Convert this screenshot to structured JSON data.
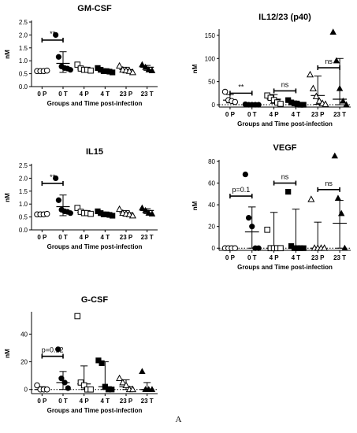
{
  "figure_label": "A",
  "groups": [
    "0 P",
    "0 T",
    "4 P",
    "4 T",
    "23 P",
    "23 T"
  ],
  "chart_data": [
    {
      "type": "scatter",
      "title": "GM-CSF",
      "ylabel": "nM",
      "xlabel": "Groups and Time post-infection",
      "ylim": [
        0,
        2.5
      ],
      "yticks": [
        0.0,
        0.5,
        1.0,
        1.5,
        2.0,
        2.5
      ],
      "tick_decimals": 1,
      "categories": [
        "0 P",
        "0 T",
        "4 P",
        "4 T",
        "23 P",
        "23 T"
      ],
      "series": [
        {
          "category": "0 P",
          "marker": "circle-open",
          "values": [
            0.6,
            0.6,
            0.6,
            0.62
          ],
          "mean": 0.61,
          "upper": 0.63,
          "lower": 0.59
        },
        {
          "category": "0 T",
          "marker": "circle",
          "values": [
            2.0,
            1.15,
            0.78,
            0.72,
            0.7,
            0.65
          ],
          "mean": 0.9,
          "upper": 1.35,
          "lower": 0.55
        },
        {
          "category": "4 P",
          "marker": "square-open",
          "values": [
            0.85,
            0.7,
            0.65,
            0.65,
            0.62
          ],
          "mean": 0.68,
          "upper": 0.75,
          "lower": 0.6
        },
        {
          "category": "4 T",
          "marker": "square",
          "values": [
            0.72,
            0.65,
            0.6,
            0.6,
            0.58,
            0.55
          ],
          "mean": 0.62,
          "upper": 0.68,
          "lower": 0.56
        },
        {
          "category": "23 P",
          "marker": "triangle-open",
          "values": [
            0.8,
            0.65,
            0.62,
            0.6,
            0.55
          ],
          "mean": 0.66,
          "upper": 0.75,
          "lower": 0.55
        },
        {
          "category": "23 T",
          "marker": "triangle",
          "values": [
            0.85,
            0.75,
            0.65,
            0.62
          ],
          "mean": 0.75,
          "upper": 0.82,
          "lower": 0.63
        }
      ],
      "annotations": [
        {
          "from": "0 P",
          "to": "0 T",
          "y": 1.8,
          "label": "**"
        }
      ]
    },
    {
      "type": "scatter",
      "title": "IL12/23 (p40)",
      "ylabel": "nM",
      "xlabel": "Groups and Time post-infection",
      "ylim": [
        -5,
        160
      ],
      "yticks": [
        0,
        50,
        100,
        150
      ],
      "tick_decimals": 0,
      "categories": [
        "0 P",
        "0 T",
        "4 P",
        "4 T",
        "23 P",
        "23 T"
      ],
      "series": [
        {
          "category": "0 P",
          "marker": "circle-open",
          "values": [
            28,
            10,
            8,
            6
          ],
          "mean": 10,
          "upper": 22,
          "lower": 4
        },
        {
          "category": "0 T",
          "marker": "circle",
          "values": [
            1,
            0,
            0,
            0,
            0
          ],
          "mean": 0,
          "upper": 1,
          "lower": 0
        },
        {
          "category": "4 P",
          "marker": "square-open",
          "values": [
            20,
            15,
            10,
            5,
            2
          ],
          "mean": 12,
          "upper": 22,
          "lower": 3
        },
        {
          "category": "4 T",
          "marker": "square",
          "values": [
            10,
            5,
            3,
            1,
            0,
            0
          ],
          "mean": 2,
          "upper": 8,
          "lower": 0
        },
        {
          "category": "23 P",
          "marker": "triangle-open",
          "values": [
            65,
            35,
            18,
            8,
            3,
            1
          ],
          "mean": 20,
          "upper": 62,
          "lower": 1
        },
        {
          "category": "23 T",
          "marker": "triangle",
          "values": [
            157,
            95,
            35,
            8,
            0
          ],
          "mean": 12,
          "upper": 100,
          "lower": 0
        }
      ],
      "annotations": [
        {
          "from": "0 P",
          "to": "0 T",
          "y": 25,
          "label": "**"
        },
        {
          "from": "4 P",
          "to": "4 T",
          "y": 30,
          "label": "ns"
        },
        {
          "from": "23 P",
          "to": "23 T",
          "y": 80,
          "label": "ns"
        }
      ],
      "dotted_zero": true
    },
    {
      "type": "scatter",
      "title": "IL15",
      "ylabel": "nM",
      "xlabel": "Groups and Time post-infection",
      "ylim": [
        0,
        2.5
      ],
      "yticks": [
        0.0,
        0.5,
        1.0,
        1.5,
        2.0,
        2.5
      ],
      "tick_decimals": 1,
      "categories": [
        "0 P",
        "0 T",
        "4 P",
        "4 T",
        "23 P",
        "23 T"
      ],
      "series": [
        {
          "category": "0 P",
          "marker": "circle-open",
          "values": [
            0.6,
            0.6,
            0.6,
            0.62
          ],
          "mean": 0.61,
          "upper": 0.63,
          "lower": 0.59
        },
        {
          "category": "0 T",
          "marker": "circle",
          "values": [
            2.0,
            1.15,
            0.78,
            0.72,
            0.7,
            0.65
          ],
          "mean": 0.9,
          "upper": 1.35,
          "lower": 0.55
        },
        {
          "category": "4 P",
          "marker": "square-open",
          "values": [
            0.85,
            0.7,
            0.65,
            0.65,
            0.62
          ],
          "mean": 0.68,
          "upper": 0.75,
          "lower": 0.6
        },
        {
          "category": "4 T",
          "marker": "square",
          "values": [
            0.72,
            0.65,
            0.6,
            0.6,
            0.58,
            0.55
          ],
          "mean": 0.62,
          "upper": 0.68,
          "lower": 0.56
        },
        {
          "category": "23 P",
          "marker": "triangle-open",
          "values": [
            0.8,
            0.65,
            0.62,
            0.6,
            0.55
          ],
          "mean": 0.66,
          "upper": 0.75,
          "lower": 0.55
        },
        {
          "category": "23 T",
          "marker": "triangle",
          "values": [
            0.85,
            0.75,
            0.65,
            0.62
          ],
          "mean": 0.75,
          "upper": 0.82,
          "lower": 0.63
        }
      ],
      "annotations": [
        {
          "from": "0 P",
          "to": "0 T",
          "y": 1.8,
          "label": "**"
        }
      ]
    },
    {
      "type": "scatter",
      "title": "VEGF",
      "ylabel": "nM",
      "xlabel": "Groups and Time post-infection",
      "ylim": [
        -2,
        80
      ],
      "yticks": [
        0,
        20,
        40,
        60,
        80
      ],
      "tick_decimals": 0,
      "categories": [
        "0 P",
        "0 T",
        "4 P",
        "4 T",
        "23 P",
        "23 T"
      ],
      "series": [
        {
          "category": "0 P",
          "marker": "circle-open",
          "values": [
            0,
            0,
            0,
            0
          ],
          "mean": 0,
          "upper": 0,
          "lower": 0
        },
        {
          "category": "0 T",
          "marker": "circle",
          "values": [
            68,
            28,
            20,
            0,
            0
          ],
          "mean": 15,
          "upper": 38,
          "lower": 0
        },
        {
          "category": "4 P",
          "marker": "square-open",
          "values": [
            17,
            0,
            0,
            0,
            0
          ],
          "mean": 0,
          "upper": 33,
          "lower": 0
        },
        {
          "category": "4 T",
          "marker": "square",
          "values": [
            52,
            2,
            0,
            0,
            0,
            0
          ],
          "mean": 0,
          "upper": 36,
          "lower": 0
        },
        {
          "category": "23 P",
          "marker": "triangle-open",
          "values": [
            45,
            0,
            0,
            0,
            0
          ],
          "mean": 0,
          "upper": 24,
          "lower": 0
        },
        {
          "category": "23 T",
          "marker": "triangle",
          "values": [
            85,
            46,
            32,
            0
          ],
          "mean": 23,
          "upper": 44,
          "lower": 0
        }
      ],
      "annotations": [
        {
          "from": "0 P",
          "to": "0 T",
          "y": 48,
          "label": "p=0.1"
        },
        {
          "from": "4 P",
          "to": "4 T",
          "y": 60,
          "label": "ns"
        },
        {
          "from": "23 P",
          "to": "23 T",
          "y": 54,
          "label": "ns"
        }
      ],
      "dotted_zero": true
    },
    {
      "type": "scatter",
      "title": "G-CSF",
      "ylabel": "nM",
      "xlabel": "Groups and Time post-infection",
      "ylim": [
        -3,
        55
      ],
      "yticks": [
        0,
        20,
        40
      ],
      "tick_decimals": 0,
      "categories": [
        "0 P",
        "0 T",
        "4 P",
        "4 T",
        "23 P",
        "23 T"
      ],
      "series": [
        {
          "category": "0 P",
          "marker": "circle-open",
          "values": [
            3,
            0,
            0,
            0
          ],
          "mean": 0,
          "upper": 2,
          "lower": 0
        },
        {
          "category": "0 T",
          "marker": "circle",
          "values": [
            29,
            8,
            5,
            1
          ],
          "mean": 5,
          "upper": 13,
          "lower": 0
        },
        {
          "category": "4 P",
          "marker": "square-open",
          "values": [
            53,
            5,
            3,
            0,
            0
          ],
          "mean": 4,
          "upper": 17,
          "lower": 0
        },
        {
          "category": "4 T",
          "marker": "square",
          "values": [
            21,
            19,
            2,
            0,
            0
          ],
          "mean": 2,
          "upper": 20,
          "lower": 0
        },
        {
          "category": "23 P",
          "marker": "triangle-open",
          "values": [
            8,
            5,
            3,
            0,
            0
          ],
          "mean": 2,
          "upper": 7,
          "lower": 0
        },
        {
          "category": "23 T",
          "marker": "triangle",
          "values": [
            13,
            0,
            0,
            0
          ],
          "mean": 0,
          "upper": 5,
          "lower": 0
        }
      ],
      "annotations": [
        {
          "from": "0 P",
          "to": "0 T",
          "y": 24,
          "label": "p=0.12"
        }
      ],
      "dotted_zero": true
    }
  ]
}
